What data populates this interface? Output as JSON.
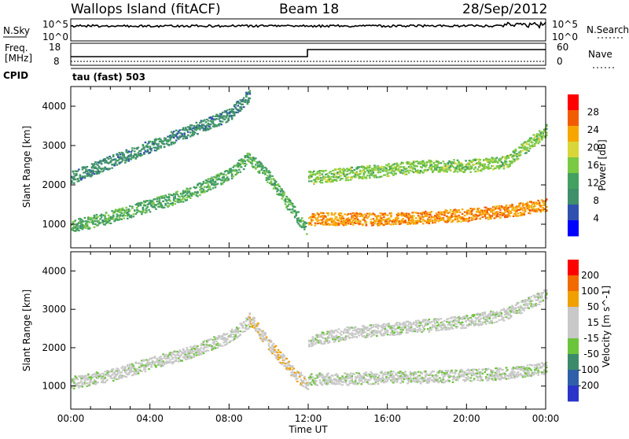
{
  "header": {
    "station": "Wallops Island (fitACF)",
    "beam": "Beam 18",
    "date": "28/Sep/2012",
    "mode_label": "tau (fast) 503"
  },
  "strips": {
    "nsky_label": "N.Sky",
    "nsky_ticks": [
      "10^5",
      "10^0"
    ],
    "nsearch_label": "N.Search",
    "nsearch_ticks": [
      "10^5",
      "10^0"
    ],
    "freq_label": "Freq.",
    "freq_unit": "[MHz]",
    "freq_ticks": [
      "18",
      "8"
    ],
    "nave_label": "Nave",
    "nave_ticks": [
      "60",
      "0"
    ],
    "cpid_label": "CPID"
  },
  "colors": {
    "power_scale": [
      "#0000ff",
      "#3050b0",
      "#3f8f6a",
      "#42a060",
      "#7ac943",
      "#d9d63a",
      "#f7a600",
      "#f25c00",
      "#ff0000"
    ],
    "velocity_scale": [
      "#2a34c8",
      "#2f5fa8",
      "#3b8a6a",
      "#6cc43a",
      "#c8c8c8",
      "#c8c8c8",
      "#f0a000",
      "#f06a00",
      "#ff0000"
    ]
  },
  "chart_data": [
    {
      "type": "heatmap",
      "name": "power",
      "xlabel": "Time UT",
      "ylabel": "Slant Range [km]",
      "x_ticks": [
        "00:00",
        "04:00",
        "08:00",
        "12:00",
        "16:00",
        "20:00",
        "00:00"
      ],
      "xlim_hours": [
        0,
        24
      ],
      "ylim": [
        400,
        4500
      ],
      "y_ticks": [
        1000,
        2000,
        3000,
        4000
      ],
      "colorbar_label": "Power [dB]",
      "colorbar_ticks": [
        "28",
        "24",
        "20",
        "16",
        "12",
        "8",
        "4"
      ],
      "bands": [
        {
          "x": [
            0,
            2,
            4,
            6,
            8,
            9,
            10,
            11,
            11.9
          ],
          "y": [
            950,
            1200,
            1500,
            1800,
            2300,
            2700,
            2200,
            1500,
            900
          ],
          "value": 13
        },
        {
          "x": [
            0,
            2,
            4,
            6,
            8,
            9
          ],
          "y": [
            2200,
            2600,
            3000,
            3400,
            3800,
            4300
          ],
          "value": 9
        },
        {
          "x": [
            12,
            14,
            16,
            18,
            20,
            22,
            24
          ],
          "y": [
            1150,
            1150,
            1150,
            1200,
            1250,
            1350,
            1500
          ],
          "value": 24
        },
        {
          "x": [
            12,
            14,
            16,
            18,
            20,
            22,
            24
          ],
          "y": [
            2200,
            2300,
            2400,
            2500,
            2500,
            2600,
            3400
          ],
          "value": 16
        }
      ]
    },
    {
      "type": "heatmap",
      "name": "velocity",
      "xlabel": "Time UT",
      "ylabel": "Slant Range [km]",
      "x_ticks": [
        "00:00",
        "04:00",
        "08:00",
        "12:00",
        "16:00",
        "20:00",
        "00:00"
      ],
      "xlim_hours": [
        0,
        24
      ],
      "ylim": [
        400,
        4500
      ],
      "y_ticks": [
        1000,
        2000,
        3000,
        4000
      ],
      "colorbar_label": "Velocity [m s^-1]",
      "colorbar_ticks": [
        "200",
        "100",
        "50",
        "15",
        "-15",
        "-50",
        "-100",
        "-200"
      ],
      "bands": [
        {
          "x": [
            0,
            2,
            4,
            6,
            8,
            9
          ],
          "y": [
            1100,
            1300,
            1600,
            1900,
            2300,
            2700
          ],
          "value": 0
        },
        {
          "x": [
            9,
            10,
            11,
            12
          ],
          "y": [
            2800,
            2100,
            1500,
            1000
          ],
          "value": 60
        },
        {
          "x": [
            12,
            14,
            16,
            18,
            20,
            22,
            24
          ],
          "y": [
            1200,
            1200,
            1250,
            1250,
            1300,
            1350,
            1500
          ],
          "value": 0
        },
        {
          "x": [
            12,
            14,
            16,
            18,
            20,
            22,
            24
          ],
          "y": [
            2200,
            2400,
            2500,
            2600,
            2700,
            2900,
            3400
          ],
          "value": 0
        }
      ]
    }
  ]
}
